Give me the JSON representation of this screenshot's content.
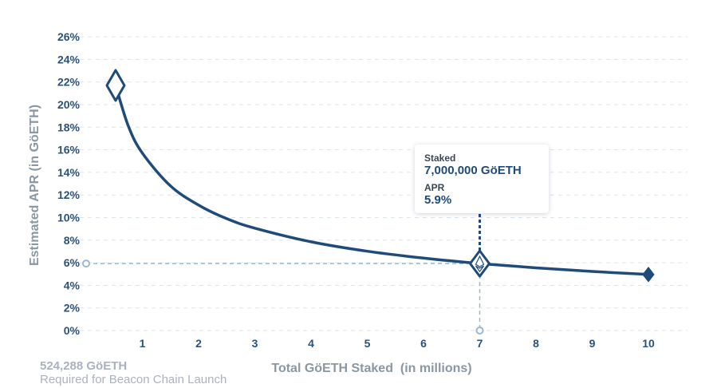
{
  "chart_data": {
    "type": "line",
    "xlabel": "Total GöETH Staked  (in millions)",
    "ylabel": "Estimated APR (in GöETH)",
    "x_ticks": [
      "1",
      "2",
      "3",
      "4",
      "5",
      "6",
      "7",
      "8",
      "9",
      "10"
    ],
    "y_ticks": [
      "0%",
      "2%",
      "4%",
      "6%",
      "8%",
      "10%",
      "12%",
      "14%",
      "16%",
      "18%",
      "20%",
      "22%",
      "24%",
      "26%"
    ],
    "xlim": [
      0,
      10.5
    ],
    "ylim": [
      0,
      26
    ],
    "grid": true,
    "series": [
      {
        "x": [
          0.524288,
          0.75,
          1,
          1.5,
          2,
          2.5,
          3,
          4,
          5,
          6,
          7,
          8,
          9,
          10
        ],
        "y": [
          21.7,
          18.1,
          15.7,
          12.8,
          11.1,
          9.9,
          9.06,
          7.85,
          7.02,
          6.41,
          5.93,
          5.55,
          5.23,
          4.96
        ]
      }
    ],
    "start_point": {
      "x": 0.524288,
      "y": 21.7
    },
    "end_point": {
      "x": 10,
      "y": 4.96
    },
    "highlight": {
      "x": 7,
      "y": 5.93
    },
    "annotation": {
      "amount": "524,288 GöETH",
      "text": "Required for Beacon Chain Launch"
    },
    "tooltip": {
      "staked_label": "Staked",
      "staked_value": "7,000,000 GöETH",
      "apr_label": "APR",
      "apr_value": "5.9%"
    },
    "colors": {
      "line": "#1e4b7a",
      "tick_text": "#2b5278",
      "guide": "#9ab8d0",
      "muted": "#a9b3bf"
    }
  }
}
